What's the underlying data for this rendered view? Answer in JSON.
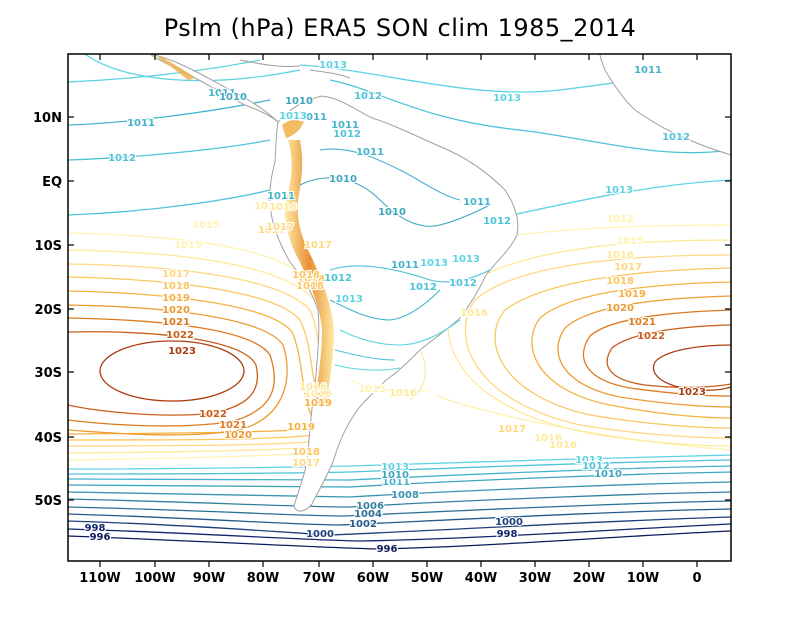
{
  "title": "Pslm (hPa) ERA5 SON clim 1985_2014",
  "lon_labels": [
    "110W",
    "100W",
    "90W",
    "80W",
    "70W",
    "60W",
    "50W",
    "40W",
    "30W",
    "20W",
    "10W",
    "0"
  ],
  "lat_labels": [
    "10N",
    "EQ",
    "10S",
    "20S",
    "30S",
    "40S",
    "50S"
  ],
  "colors": {
    "c996": "#0b1a5a",
    "c998": "#12246c",
    "c1000": "#1d3f7c",
    "c1002": "#245a8a",
    "c1004": "#2c6f96",
    "c1006": "#347f9f",
    "c1008": "#3a93b0",
    "c1010": "#3ea6bf",
    "c1011": "#45b3cc",
    "c1012": "#4fc3d8",
    "c1013": "#5fd3e3",
    "c1015": "#fff3b0",
    "c1016": "#ffe898",
    "c1017": "#ffd880",
    "c1018": "#fcc660",
    "c1019": "#f5b040",
    "c1020": "#ed9a30",
    "c1021": "#dd7a20",
    "c1022": "#c95e18",
    "c1023": "#ad3d10",
    "land": "#a0a0a0"
  },
  "contour_labels": {
    "l1011_a": "1011",
    "l1012_a": "1012",
    "l1013_a": "1013",
    "l1012_b": "1012",
    "l1013_b": "1013",
    "l1011_b": "1011",
    "l1012_c": "1012",
    "l1010_a": "1010",
    "l1011_c": "1011",
    "l1013_c": "1013",
    "l1011_d": "1011",
    "l1010_b": "1010",
    "l1011_e": "1011",
    "l1010_c": "1010",
    "l1011_f": "1011",
    "l1012_d": "1012",
    "l1013_d": "1013",
    "l1011_g": "1011",
    "l1012_e": "1012",
    "l1013_e": "1013",
    "l1010_d": "1010",
    "l1012_f": "1012",
    "l1013_f": "1013",
    "l1011_h": "1011",
    "l1012_g": "1012",
    "l1013_g": "1013",
    "l1012_h": "1012",
    "l1011_i": "1011",
    "l1016_a": "1016",
    "l1017_a": "1017",
    "l1018_a": "1018",
    "l1015_a": "1015",
    "l1017_b": "1017",
    "l1018_b": "1018",
    "l1019_a": "1019",
    "l1020_a": "1020",
    "l1021_a": "1021",
    "l1022_a": "1022",
    "l1023_a": "1023",
    "l1022_b": "1022",
    "l1021_b": "1021",
    "l1020_b": "1020",
    "l1019_b": "1019",
    "l1018_c": "1018",
    "l1017_c": "1017",
    "l1016_b": "1016",
    "l1016_c": "1016",
    "l1015_b": "1015",
    "l1016_d": "1016",
    "l1017_d": "1017",
    "l1018_d": "1018",
    "l1019_c": "1019",
    "l1020_c": "1020",
    "l1021_c": "1021",
    "l1022_c": "1022",
    "l1023_b": "1023",
    "l1012_i": "1012",
    "l1015_c": "1015",
    "l1016_e": "1016",
    "l1017_e": "1017",
    "l1016_f": "1016",
    "l1013_h": "1013",
    "l1012_j": "1012",
    "l1010_e": "1010",
    "l1013_i": "1013",
    "l1011_j": "1011",
    "l1010_f": "1010",
    "l1008_a": "1008",
    "l1006_a": "1006",
    "l1004_a": "1004",
    "l1002_a": "1002",
    "l1000_a": "1000",
    "l996_a": "996",
    "l998_a": "998",
    "l1000_b": "1000",
    "l998_b": "998",
    "l996_b": "996",
    "l1018_e": "1018",
    "l1016_g": "1016",
    "l1016_h": "1016",
    "l1015_d": "1015",
    "l1017_f": "1017",
    "l1018_f": "1018",
    "l1019_d": "1019",
    "l1018_g": "1018",
    "l1017_g": "1017",
    "l1016_i": "1016",
    "l1017_h": "1017"
  }
}
